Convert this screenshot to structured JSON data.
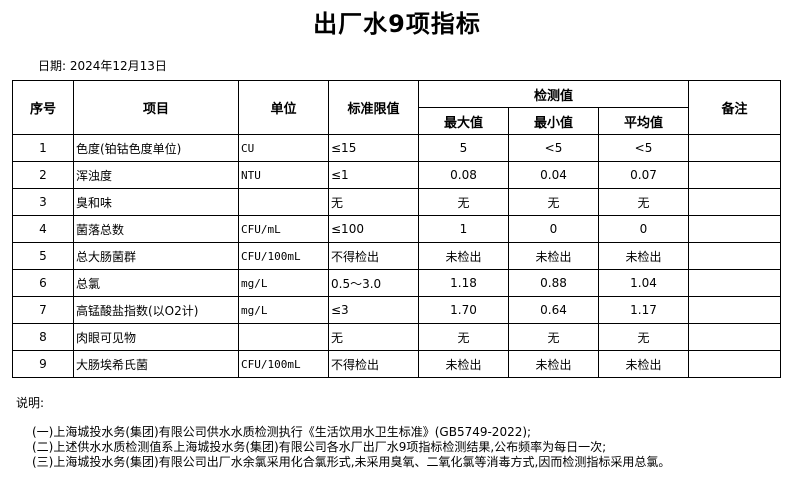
{
  "title": "出厂水9项指标",
  "date": "日期: 2024年12月13日",
  "headers": {
    "no": "序号",
    "item": "项目",
    "unit": "单位",
    "limit": "标准限值",
    "measured": "检测值",
    "max": "最大值",
    "min": "最小值",
    "avg": "平均值",
    "remark": "备注"
  },
  "rows": [
    {
      "no": "1",
      "item": "色度(铂钴色度单位)",
      "unit": "CU",
      "limit": "≤15",
      "max": "5",
      "min": "<5",
      "avg": "<5"
    },
    {
      "no": "2",
      "item": "浑浊度",
      "unit": "NTU",
      "limit": "≤1",
      "max": "0.08",
      "min": "0.04",
      "avg": "0.07"
    },
    {
      "no": "3",
      "item": "臭和味",
      "unit": "",
      "limit": "无",
      "max": "无",
      "min": "无",
      "avg": "无"
    },
    {
      "no": "4",
      "item": "菌落总数",
      "unit": "CFU/mL",
      "limit": "≤100",
      "max": "1",
      "min": "0",
      "avg": "0"
    },
    {
      "no": "5",
      "item": "总大肠菌群",
      "unit": "CFU/100mL",
      "limit": "不得检出",
      "max": "未检出",
      "min": "未检出",
      "avg": "未检出"
    },
    {
      "no": "6",
      "item": "总氯",
      "unit": "mg/L",
      "limit": "0.5～3.0",
      "max": "1.18",
      "min": "0.88",
      "avg": "1.04"
    },
    {
      "no": "7",
      "item": "高锰酸盐指数(以O2计)",
      "unit": "mg/L",
      "limit": "≤3",
      "max": "1.70",
      "min": "0.64",
      "avg": "1.17"
    },
    {
      "no": "8",
      "item": "肉眼可见物",
      "unit": "",
      "limit": "无",
      "max": "无",
      "min": "无",
      "avg": "无"
    },
    {
      "no": "9",
      "item": "大肠埃希氏菌",
      "unit": "CFU/100mL",
      "limit": "不得检出",
      "max": "未检出",
      "min": "未检出",
      "avg": "未检出"
    }
  ],
  "notes_heading": "说明:",
  "notes": [
    "(一)上海城投水务(集团)有限公司供水水质检测执行《生活饮用水卫生标准》(GB5749-2022);",
    "(二)上述供水水质检测值系上海城投水务(集团)有限公司各水厂出厂水9项指标检测结果,公布频率为每日一次;",
    "(三)上海城投水务(集团)有限公司出厂水余氯采用化合氯形式,未采用臭氧、二氧化氯等消毒方式,因而检测指标采用总氯。"
  ]
}
